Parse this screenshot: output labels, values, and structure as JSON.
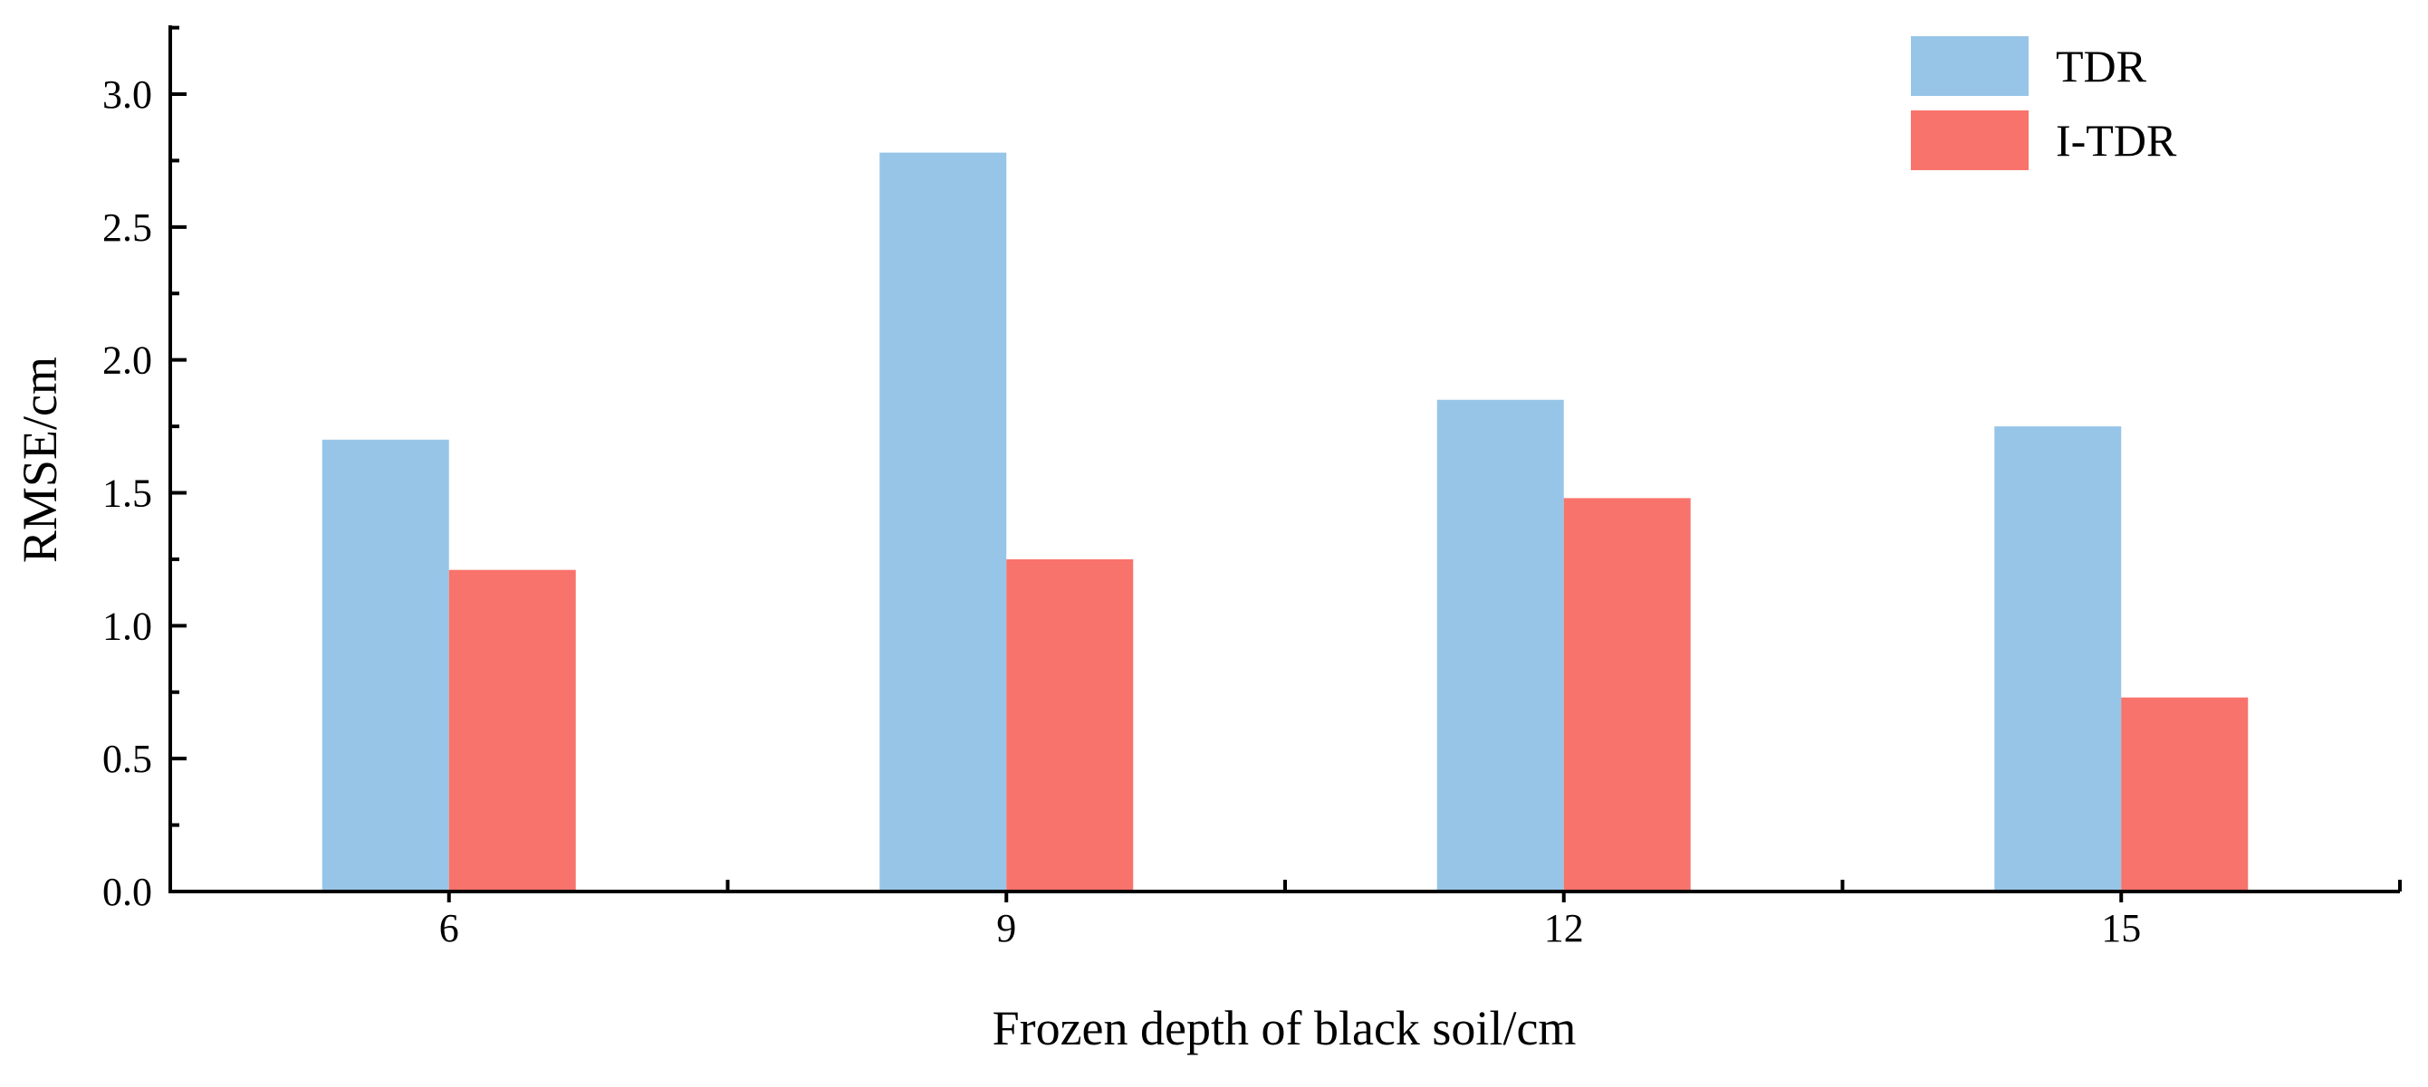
{
  "chart_data": {
    "type": "bar",
    "categories": [
      "6",
      "9",
      "12",
      "15"
    ],
    "series": [
      {
        "name": "TDR",
        "values": [
          1.7,
          2.78,
          1.85,
          1.75
        ],
        "color": "#97c5e7"
      },
      {
        "name": "I-TDR",
        "values": [
          1.21,
          1.25,
          1.48,
          0.73
        ],
        "color": "#f8736b"
      }
    ],
    "xlabel": "Frozen depth of black soil/cm",
    "ylabel": "RMSE/cm",
    "ylim": [
      0,
      3.0
    ],
    "yticks": [
      "0.0",
      "0.5",
      "1.0",
      "1.5",
      "2.0",
      "2.5",
      "3.0"
    ],
    "grid": false,
    "legend_position": "top-right"
  }
}
